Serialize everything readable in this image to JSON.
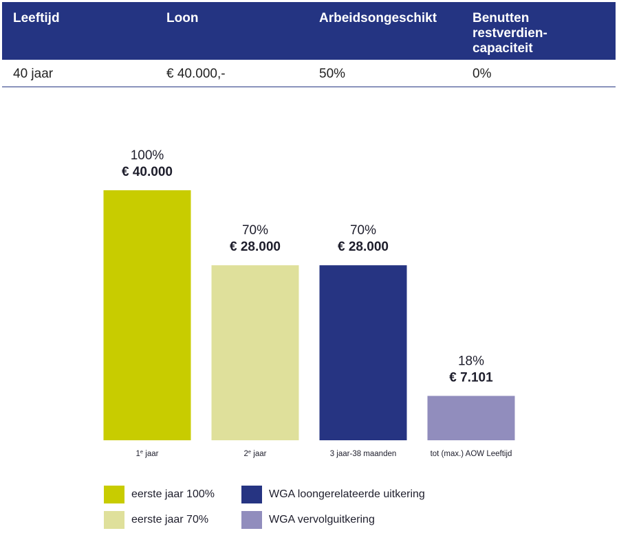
{
  "table": {
    "headers": [
      "Leeftijd",
      "Loon",
      "Arbeidsongeschikt",
      "Benutten restverdien-capaciteit"
    ],
    "row": [
      "40 jaar",
      "€ 40.000,-",
      "50%",
      "0%"
    ]
  },
  "colors": {
    "header_bg": "#243482",
    "eerste_jaar_100": "#c8cc00",
    "eerste_jaar_70": "#dfe09b",
    "wga_loongerelateerd": "#263482",
    "wga_vervolg": "#918dbd"
  },
  "chart_data": {
    "type": "bar",
    "categories": [
      "1e jaar",
      "2e jaar",
      "3 jaar-38 maanden",
      "tot (max.) AOW Leeftijd"
    ],
    "values": [
      40000,
      28000,
      28000,
      7101
    ],
    "percent_labels": [
      "100%",
      "70%",
      "70%",
      "18%"
    ],
    "amount_labels": [
      "€ 40.000",
      "€ 28.000",
      "€ 28.000",
      "€ 7.101"
    ],
    "bar_colors": [
      "#c8cc00",
      "#dfe09b",
      "#263482",
      "#918dbd"
    ],
    "ylim": [
      0,
      40000
    ],
    "grid": false,
    "legend": [
      {
        "label": "eerste jaar 100%",
        "color": "#c8cc00"
      },
      {
        "label": "eerste jaar 70%",
        "color": "#dfe09b"
      },
      {
        "label": "WGA loongerelateerde uitkering",
        "color": "#263482"
      },
      {
        "label": "WGA vervolguitkering",
        "color": "#918dbd"
      }
    ],
    "legend_position": "bottom"
  }
}
